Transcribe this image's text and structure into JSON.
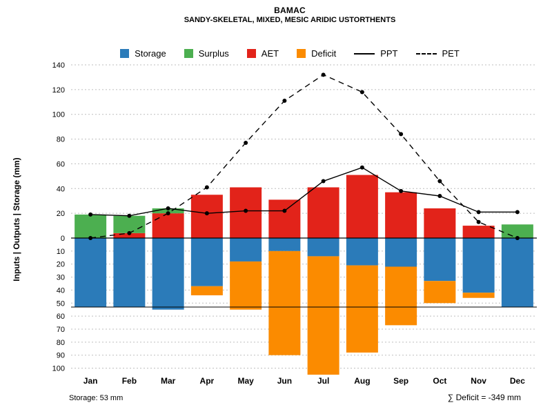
{
  "chart_data": {
    "type": "bar",
    "title": "BAMAC",
    "subtitle": "SANDY-SKELETAL, MIXED, MESIC ARIDIC USTORTHENTS",
    "ylabel": "Inputs | Outputs | Storage  (mm)",
    "categories": [
      "Jan",
      "Feb",
      "Mar",
      "Apr",
      "May",
      "Jun",
      "Jul",
      "Aug",
      "Sep",
      "Oct",
      "Nov",
      "Dec"
    ],
    "y_axis": {
      "upper_ticks": [
        0,
        20,
        40,
        60,
        80,
        100,
        120,
        140
      ],
      "lower_ticks": [
        10,
        20,
        30,
        40,
        50,
        60,
        70,
        80,
        90,
        100
      ],
      "upper_max": 140,
      "lower_max": 105
    },
    "grid": true,
    "legend_position": "top",
    "storage_capacity_mm": 53,
    "series": [
      {
        "name": "AET",
        "kind": "bar-up",
        "color": "#e2231a",
        "values": [
          0,
          4,
          20,
          35,
          41,
          31,
          41,
          51,
          37,
          24,
          10,
          0
        ]
      },
      {
        "name": "Surplus",
        "kind": "bar-up",
        "color": "#4caf50",
        "values": [
          19,
          14,
          4,
          0,
          0,
          0,
          0,
          0,
          0,
          0,
          0,
          11
        ]
      },
      {
        "name": "Storage",
        "kind": "bar-down",
        "color": "#2b7bb9",
        "values": [
          53,
          53,
          55,
          37,
          18,
          10,
          14,
          21,
          22,
          33,
          42,
          53
        ]
      },
      {
        "name": "Deficit",
        "kind": "bar-down",
        "color": "#fb8b00",
        "values": [
          0,
          0,
          0,
          7,
          37,
          80,
          91,
          67,
          45,
          17,
          4,
          0
        ]
      },
      {
        "name": "PPT",
        "kind": "line-solid",
        "color": "#000000",
        "values": [
          19,
          18,
          24,
          20,
          22,
          22,
          46,
          57,
          38,
          34,
          21,
          21
        ]
      },
      {
        "name": "PET",
        "kind": "line-dashed",
        "color": "#000000",
        "values": [
          0,
          4,
          20,
          41,
          77,
          111,
          132,
          118,
          84,
          46,
          13,
          0
        ]
      }
    ],
    "annotations": {
      "storage": "Storage: 53 mm",
      "deficit_sum": "∑ Deficit = -349 mm"
    }
  },
  "legend": {
    "items": [
      {
        "label": "Storage",
        "swatch": "square",
        "color": "#2b7bb9"
      },
      {
        "label": "Surplus",
        "swatch": "square",
        "color": "#4caf50"
      },
      {
        "label": "AET",
        "swatch": "square",
        "color": "#e2231a"
      },
      {
        "label": "Deficit",
        "swatch": "square",
        "color": "#fb8b00"
      },
      {
        "label": "PPT",
        "swatch": "line-solid",
        "color": "#000000"
      },
      {
        "label": "PET",
        "swatch": "line-dashed",
        "color": "#000000"
      }
    ]
  }
}
